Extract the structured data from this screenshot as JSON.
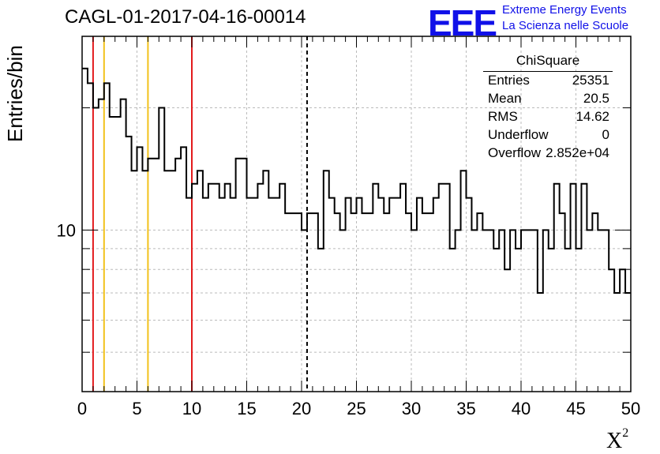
{
  "title": "CAGL-01-2017-04-16-00014",
  "logo": {
    "text": "EEE",
    "line1": "Extreme Energy Events",
    "line2": "La Scienza nelle Scuole"
  },
  "colors": {
    "histogram": "#000000",
    "red_line": "#e31a1c",
    "orange_line": "#f2c21b",
    "mean_line": "#000000",
    "grid": "#bbbbbb"
  },
  "stats": {
    "title": "ChiSquare",
    "rows": [
      {
        "label": "Entries",
        "value": "25351"
      },
      {
        "label": "Mean",
        "value": "20.5"
      },
      {
        "label": "RMS",
        "value": "14.62"
      },
      {
        "label": "Underflow",
        "value": "0"
      },
      {
        "label": "Overflow",
        "value": "2.852e+04"
      }
    ]
  },
  "chart_data": {
    "type": "histogram",
    "ylabel": "Entries/bin",
    "xlabel": "X²",
    "xlim": [
      0,
      50
    ],
    "ylim": [
      4,
      30
    ],
    "yscale": "log",
    "grid": true,
    "bin_width": 0.5,
    "xticks": [
      "0",
      "5",
      "10",
      "15",
      "20",
      "25",
      "30",
      "35",
      "40",
      "45",
      "50"
    ],
    "yticks": [
      "10"
    ],
    "values": [
      25,
      23,
      20,
      21,
      23,
      19,
      19,
      21,
      17,
      14,
      16,
      14,
      15,
      15,
      20,
      14,
      14,
      15,
      16,
      12,
      13,
      14,
      12,
      13,
      13,
      12,
      13,
      12,
      15,
      15,
      12,
      12,
      13,
      14,
      12,
      12,
      13,
      11,
      11,
      11,
      10,
      11,
      11,
      9,
      14,
      12,
      11,
      10,
      12,
      11,
      12,
      11,
      11,
      13,
      12,
      11,
      12,
      12,
      13,
      11,
      10,
      12,
      11,
      11,
      12,
      13,
      13,
      9,
      10,
      14,
      12,
      10,
      11,
      10,
      10,
      9,
      10,
      8,
      10,
      9,
      10,
      10,
      10,
      7,
      10,
      9,
      13,
      11,
      9,
      13,
      9,
      13,
      10,
      11,
      10,
      10,
      8,
      7,
      8,
      7
    ],
    "vlines": [
      {
        "x": 1,
        "style": "solid",
        "color": "red"
      },
      {
        "x": 2,
        "style": "solid",
        "color": "orange"
      },
      {
        "x": 6,
        "style": "solid",
        "color": "orange"
      },
      {
        "x": 10,
        "style": "solid",
        "color": "red"
      },
      {
        "x": 20.5,
        "style": "dashed",
        "color": "black"
      }
    ]
  }
}
